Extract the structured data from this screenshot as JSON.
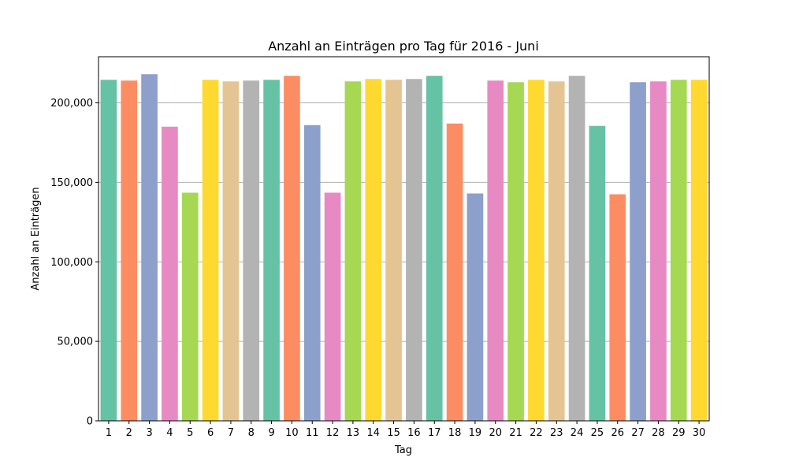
{
  "chart_data": {
    "type": "bar",
    "title": "Anzahl an Einträgen pro Tag für 2016 - Juni",
    "xlabel": "Tag",
    "ylabel": "Anzahl an Einträgen",
    "categories": [
      "1",
      "2",
      "3",
      "4",
      "5",
      "6",
      "7",
      "8",
      "9",
      "10",
      "11",
      "12",
      "13",
      "14",
      "15",
      "16",
      "17",
      "18",
      "19",
      "20",
      "21",
      "22",
      "23",
      "24",
      "25",
      "26",
      "27",
      "28",
      "29",
      "30"
    ],
    "values": [
      214500,
      214000,
      218000,
      185000,
      143500,
      214500,
      213500,
      214000,
      214500,
      217000,
      186000,
      143500,
      213500,
      215000,
      214500,
      215000,
      217000,
      187000,
      143000,
      214000,
      213000,
      214500,
      213500,
      217000,
      185500,
      142500,
      213000,
      213500,
      214500,
      214500
    ],
    "ylim": [
      0,
      229000
    ],
    "yticks": [
      0,
      50000,
      100000,
      150000,
      200000
    ],
    "ytick_labels": [
      "0",
      "50,000",
      "100,000",
      "150,000",
      "200,000"
    ],
    "grid": "horizontal",
    "palette": [
      "#66c2a5",
      "#fc8d62",
      "#8da0cb",
      "#e78ac3",
      "#a6d854",
      "#ffd92f",
      "#e5c494",
      "#b3b3b3"
    ]
  }
}
